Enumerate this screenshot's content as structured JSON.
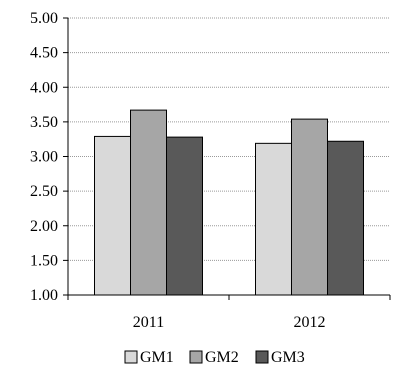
{
  "chart_data": {
    "type": "bar",
    "categories": [
      "2011",
      "2012"
    ],
    "series": [
      {
        "name": "GM1",
        "values": [
          3.29,
          3.19
        ],
        "color": "#d9d9d9"
      },
      {
        "name": "GM2",
        "values": [
          3.67,
          3.54
        ],
        "color": "#a6a6a6"
      },
      {
        "name": "GM3",
        "values": [
          3.28,
          3.22
        ],
        "color": "#595959"
      }
    ],
    "ylim": [
      1.0,
      5.0
    ],
    "yticks": [
      "1.00",
      "1.50",
      "2.00",
      "2.50",
      "3.00",
      "3.50",
      "4.00",
      "4.50",
      "5.00"
    ],
    "grid": true,
    "legend_position": "bottom",
    "title": "",
    "xlabel": "",
    "ylabel": ""
  }
}
